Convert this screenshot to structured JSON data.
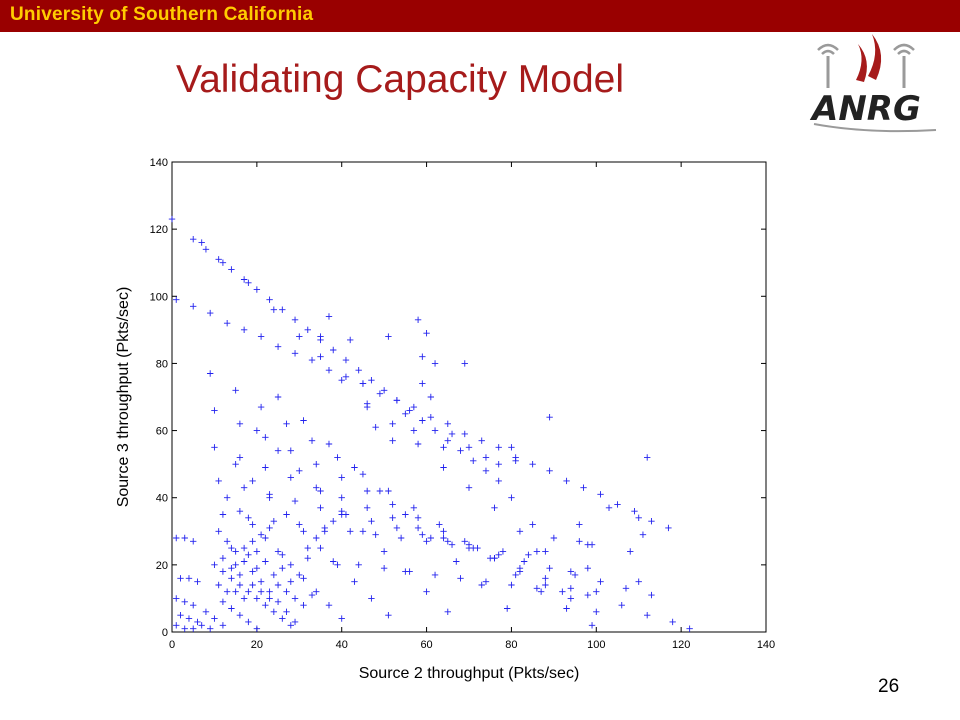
{
  "header": {
    "banner_text": "University of Southern California",
    "banner_color": "#990000",
    "banner_text_color": "#ffcc00"
  },
  "slide": {
    "title": "Validating Capacity Model",
    "title_color": "#a61b1b",
    "page_number": "26"
  },
  "logo": {
    "text": "ANRG",
    "icon": "wireless-signal-icon"
  },
  "chart_data": {
    "type": "scatter",
    "title": "",
    "xlabel": "Source 2 throughput (Pkts/sec)",
    "ylabel": "Source 3 throughput (Pkts/sec)",
    "xlim": [
      0,
      140
    ],
    "ylim": [
      0,
      140
    ],
    "xticks": [
      0,
      20,
      40,
      60,
      80,
      100,
      120,
      140
    ],
    "yticks": [
      0,
      20,
      40,
      60,
      80,
      100,
      120,
      140
    ],
    "grid": false,
    "marker": "+",
    "color": "#2222ee",
    "series": [
      {
        "values_description_free": true,
        "points": [
          [
            5,
            117
          ],
          [
            8,
            114
          ],
          [
            11,
            111
          ],
          [
            14,
            108
          ],
          [
            17,
            105
          ],
          [
            20,
            102
          ],
          [
            23,
            99
          ],
          [
            26,
            96
          ],
          [
            29,
            93
          ],
          [
            32,
            90
          ],
          [
            35,
            87
          ],
          [
            38,
            84
          ],
          [
            41,
            81
          ],
          [
            44,
            78
          ],
          [
            47,
            75
          ],
          [
            50,
            72
          ],
          [
            53,
            69
          ],
          [
            56,
            66
          ],
          [
            59,
            63
          ],
          [
            62,
            60
          ],
          [
            65,
            57
          ],
          [
            68,
            54
          ],
          [
            71,
            51
          ],
          [
            74,
            48
          ],
          [
            77,
            45
          ],
          [
            1,
            99
          ],
          [
            5,
            97
          ],
          [
            9,
            95
          ],
          [
            13,
            92
          ],
          [
            17,
            90
          ],
          [
            21,
            88
          ],
          [
            25,
            85
          ],
          [
            29,
            83
          ],
          [
            33,
            81
          ],
          [
            37,
            78
          ],
          [
            41,
            76
          ],
          [
            45,
            74
          ],
          [
            49,
            71
          ],
          [
            53,
            69
          ],
          [
            57,
            67
          ],
          [
            61,
            64
          ],
          [
            65,
            62
          ],
          [
            69,
            59
          ],
          [
            73,
            57
          ],
          [
            77,
            55
          ],
          [
            81,
            52
          ],
          [
            85,
            50
          ],
          [
            89,
            48
          ],
          [
            93,
            45
          ],
          [
            97,
            43
          ],
          [
            101,
            41
          ],
          [
            105,
            38
          ],
          [
            109,
            36
          ],
          [
            113,
            33
          ],
          [
            117,
            31
          ],
          [
            0,
            123
          ],
          [
            7,
            116
          ],
          [
            12,
            110
          ],
          [
            18,
            104
          ],
          [
            24,
            96
          ],
          [
            30,
            88
          ],
          [
            35,
            82
          ],
          [
            40,
            75
          ],
          [
            46,
            68
          ],
          [
            52,
            62
          ],
          [
            58,
            56
          ],
          [
            64,
            49
          ],
          [
            70,
            43
          ],
          [
            76,
            37
          ],
          [
            82,
            30
          ],
          [
            88,
            24
          ],
          [
            94,
            18
          ],
          [
            100,
            12
          ],
          [
            106,
            8
          ],
          [
            112,
            5
          ],
          [
            118,
            3
          ],
          [
            122,
            1
          ],
          [
            9,
            77
          ],
          [
            15,
            72
          ],
          [
            21,
            67
          ],
          [
            27,
            62
          ],
          [
            33,
            57
          ],
          [
            39,
            52
          ],
          [
            45,
            47
          ],
          [
            51,
            42
          ],
          [
            57,
            37
          ],
          [
            63,
            32
          ],
          [
            69,
            27
          ],
          [
            75,
            22
          ],
          [
            81,
            17
          ],
          [
            87,
            12
          ],
          [
            93,
            7
          ],
          [
            99,
            2
          ],
          [
            10,
            66
          ],
          [
            16,
            62
          ],
          [
            22,
            58
          ],
          [
            28,
            54
          ],
          [
            34,
            50
          ],
          [
            40,
            46
          ],
          [
            46,
            42
          ],
          [
            52,
            38
          ],
          [
            58,
            34
          ],
          [
            64,
            30
          ],
          [
            70,
            26
          ],
          [
            76,
            22
          ],
          [
            82,
            18
          ],
          [
            88,
            14
          ],
          [
            94,
            10
          ],
          [
            100,
            6
          ],
          [
            10,
            55
          ],
          [
            16,
            52
          ],
          [
            22,
            49
          ],
          [
            28,
            46
          ],
          [
            34,
            43
          ],
          [
            40,
            40
          ],
          [
            46,
            37
          ],
          [
            52,
            34
          ],
          [
            58,
            31
          ],
          [
            64,
            28
          ],
          [
            70,
            25
          ],
          [
            76,
            22
          ],
          [
            82,
            19
          ],
          [
            88,
            16
          ],
          [
            94,
            13
          ],
          [
            11,
            45
          ],
          [
            17,
            43
          ],
          [
            23,
            41
          ],
          [
            29,
            39
          ],
          [
            35,
            37
          ],
          [
            41,
            35
          ],
          [
            47,
            33
          ],
          [
            53,
            31
          ],
          [
            59,
            29
          ],
          [
            65,
            27
          ],
          [
            71,
            25
          ],
          [
            77,
            23
          ],
          [
            83,
            21
          ],
          [
            89,
            19
          ],
          [
            95,
            17
          ],
          [
            101,
            15
          ],
          [
            107,
            13
          ],
          [
            113,
            11
          ],
          [
            12,
            35
          ],
          [
            18,
            34
          ],
          [
            24,
            33
          ],
          [
            30,
            32
          ],
          [
            36,
            31
          ],
          [
            42,
            30
          ],
          [
            48,
            29
          ],
          [
            54,
            28
          ],
          [
            60,
            27
          ],
          [
            66,
            26
          ],
          [
            72,
            25
          ],
          [
            78,
            24
          ],
          [
            84,
            23
          ],
          [
            14,
            25
          ],
          [
            20,
            24
          ],
          [
            26,
            23
          ],
          [
            32,
            22
          ],
          [
            38,
            21
          ],
          [
            44,
            20
          ],
          [
            50,
            19
          ],
          [
            56,
            18
          ],
          [
            62,
            17
          ],
          [
            68,
            16
          ],
          [
            74,
            15
          ],
          [
            80,
            14
          ],
          [
            86,
            13
          ],
          [
            92,
            12
          ],
          [
            98,
            11
          ],
          [
            1,
            28
          ],
          [
            3,
            28
          ],
          [
            5,
            27
          ],
          [
            2,
            16
          ],
          [
            4,
            16
          ],
          [
            6,
            15
          ],
          [
            1,
            10
          ],
          [
            3,
            9
          ],
          [
            5,
            8
          ],
          [
            2,
            5
          ],
          [
            4,
            4
          ],
          [
            6,
            3
          ],
          [
            1,
            2
          ],
          [
            3,
            1
          ],
          [
            5,
            1
          ],
          [
            7,
            2
          ],
          [
            9,
            1
          ],
          [
            8,
            6
          ],
          [
            10,
            4
          ],
          [
            12,
            2
          ],
          [
            10,
            20
          ],
          [
            12,
            18
          ],
          [
            14,
            16
          ],
          [
            16,
            14
          ],
          [
            18,
            12
          ],
          [
            20,
            10
          ],
          [
            22,
            8
          ],
          [
            24,
            6
          ],
          [
            26,
            4
          ],
          [
            28,
            2
          ],
          [
            11,
            30
          ],
          [
            13,
            27
          ],
          [
            15,
            24
          ],
          [
            17,
            21
          ],
          [
            19,
            18
          ],
          [
            21,
            15
          ],
          [
            23,
            12
          ],
          [
            25,
            9
          ],
          [
            27,
            6
          ],
          [
            29,
            3
          ],
          [
            13,
            40
          ],
          [
            16,
            36
          ],
          [
            19,
            32
          ],
          [
            22,
            28
          ],
          [
            25,
            24
          ],
          [
            28,
            20
          ],
          [
            31,
            16
          ],
          [
            34,
            12
          ],
          [
            37,
            8
          ],
          [
            40,
            4
          ],
          [
            15,
            50
          ],
          [
            19,
            45
          ],
          [
            23,
            40
          ],
          [
            27,
            35
          ],
          [
            31,
            30
          ],
          [
            35,
            25
          ],
          [
            39,
            20
          ],
          [
            43,
            15
          ],
          [
            47,
            10
          ],
          [
            51,
            5
          ],
          [
            20,
            60
          ],
          [
            25,
            54
          ],
          [
            30,
            48
          ],
          [
            35,
            42
          ],
          [
            40,
            36
          ],
          [
            45,
            30
          ],
          [
            50,
            24
          ],
          [
            55,
            18
          ],
          [
            60,
            12
          ],
          [
            65,
            6
          ],
          [
            25,
            70
          ],
          [
            31,
            63
          ],
          [
            37,
            56
          ],
          [
            43,
            49
          ],
          [
            49,
            42
          ],
          [
            55,
            35
          ],
          [
            61,
            28
          ],
          [
            67,
            21
          ],
          [
            73,
            14
          ],
          [
            79,
            7
          ],
          [
            12,
            22
          ],
          [
            14,
            19
          ],
          [
            16,
            17
          ],
          [
            18,
            23
          ],
          [
            20,
            19
          ],
          [
            22,
            21
          ],
          [
            24,
            17
          ],
          [
            26,
            19
          ],
          [
            28,
            15
          ],
          [
            30,
            17
          ],
          [
            15,
            12
          ],
          [
            17,
            10
          ],
          [
            19,
            14
          ],
          [
            21,
            12
          ],
          [
            23,
            10
          ],
          [
            25,
            14
          ],
          [
            27,
            12
          ],
          [
            29,
            10
          ],
          [
            31,
            8
          ],
          [
            33,
            11
          ],
          [
            11,
            14
          ],
          [
            13,
            12
          ],
          [
            15,
            20
          ],
          [
            17,
            25
          ],
          [
            19,
            27
          ],
          [
            21,
            29
          ],
          [
            23,
            31
          ],
          [
            12,
            9
          ],
          [
            14,
            7
          ],
          [
            16,
            5
          ],
          [
            18,
            3
          ],
          [
            20,
            1
          ],
          [
            32,
            25
          ],
          [
            34,
            28
          ],
          [
            36,
            30
          ],
          [
            38,
            33
          ],
          [
            40,
            35
          ],
          [
            37,
            94
          ],
          [
            35,
            88
          ],
          [
            42,
            87
          ],
          [
            51,
            88
          ],
          [
            58,
            93
          ],
          [
            60,
            89
          ],
          [
            59,
            82
          ],
          [
            62,
            80
          ],
          [
            69,
            80
          ],
          [
            45,
            74
          ],
          [
            59,
            74
          ],
          [
            61,
            70
          ],
          [
            55,
            65
          ],
          [
            57,
            60
          ],
          [
            48,
            61
          ],
          [
            46,
            67
          ],
          [
            52,
            57
          ],
          [
            64,
            55
          ],
          [
            66,
            59
          ],
          [
            70,
            55
          ],
          [
            74,
            52
          ],
          [
            80,
            55
          ],
          [
            81,
            51
          ],
          [
            77,
            50
          ],
          [
            89,
            64
          ],
          [
            112,
            52
          ],
          [
            96,
            32
          ],
          [
            96,
            27
          ],
          [
            98,
            26
          ],
          [
            103,
            37
          ],
          [
            110,
            34
          ],
          [
            111,
            29
          ],
          [
            108,
            24
          ],
          [
            99,
            26
          ],
          [
            110,
            15
          ],
          [
            98,
            19
          ],
          [
            90,
            28
          ],
          [
            85,
            32
          ],
          [
            86,
            24
          ],
          [
            80,
            40
          ]
        ]
      }
    ]
  }
}
